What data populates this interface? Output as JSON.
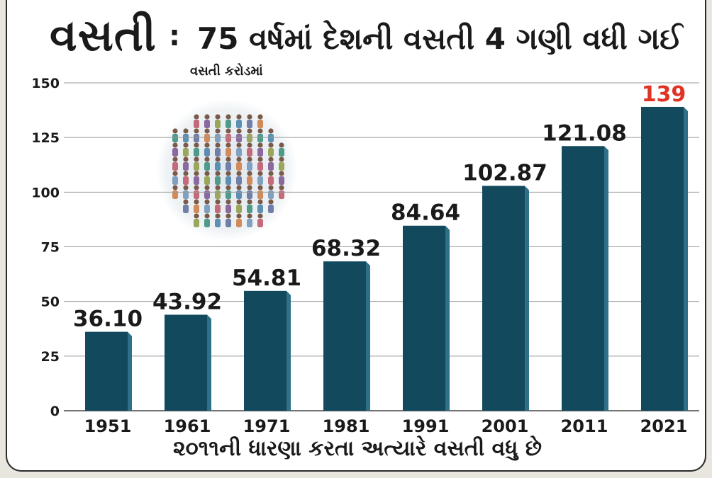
{
  "title": {
    "main": "વસતી",
    "separator": ":",
    "subtitle": "75 વર્ષમાં દેશની વસતી 4 ગણી વધી ગઈ"
  },
  "unit_label": "વસતી કરોડમાં",
  "x_title": "૨૦૧૧ની ધારણા કરતા અત્યારે વસતી વધુ છે",
  "colors": {
    "bar": "#13495d",
    "bar_side": "#2f7088",
    "highlight_label": "#e03324",
    "label": "#1a1a1a",
    "grid": "#9a9a9a"
  },
  "chart_data": {
    "type": "bar",
    "title": "75 વર્ષમાં દેશની વસતી 4 ગણી વધી ગઈ",
    "ylabel": "વસતી કરોડમાં",
    "xlabel": "૨૦૧૧ની ધારણા કરતા અત્યારે વસતી વધુ છે",
    "categories": [
      "1951",
      "1961",
      "1971",
      "1981",
      "1991",
      "2001",
      "2011",
      "2021"
    ],
    "values": [
      36.1,
      43.92,
      54.81,
      68.32,
      84.64,
      102.87,
      121.08,
      139
    ],
    "data_labels": [
      "36.10",
      "43.92",
      "54.81",
      "68.32",
      "84.64",
      "102.87",
      "121.08",
      "139"
    ],
    "highlight_index": 7,
    "ylim": [
      0,
      150
    ],
    "yticks": [
      0,
      25,
      50,
      75,
      100,
      125,
      150
    ],
    "grid": true
  }
}
